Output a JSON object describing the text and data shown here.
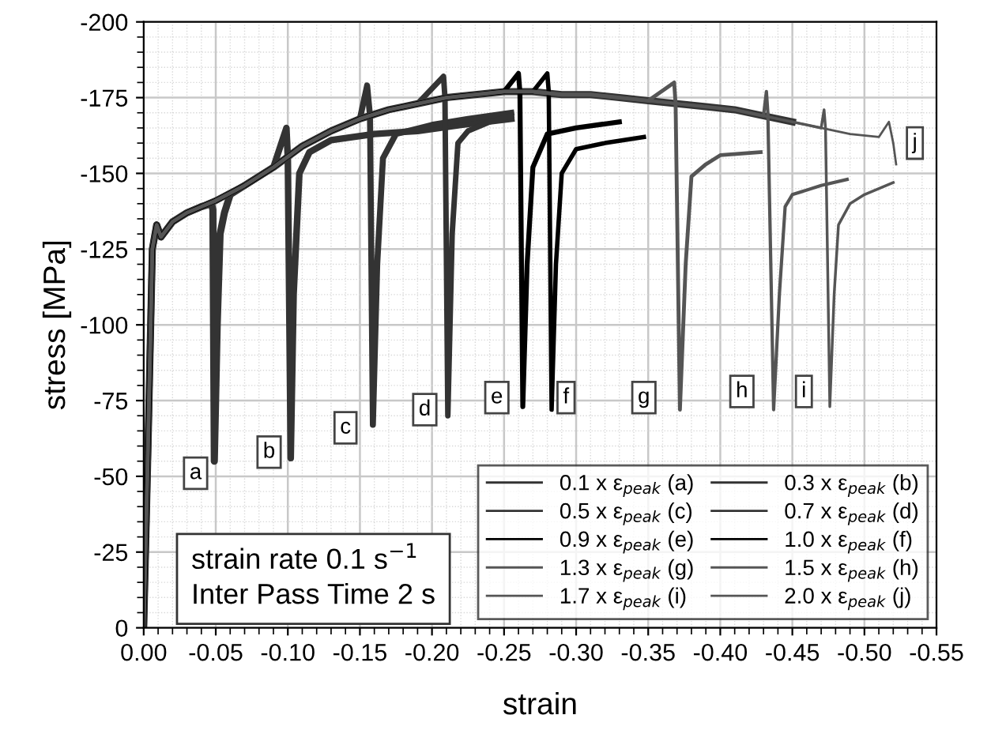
{
  "chart_data": {
    "type": "line",
    "xlabel": "strain",
    "ylabel": "stress [MPa]",
    "xlim": [
      0,
      -0.55
    ],
    "ylim": [
      0,
      -200
    ],
    "xticks": [
      {
        "value": 0,
        "label": "0.00"
      },
      {
        "value": -0.05,
        "label": "-0.05"
      },
      {
        "value": -0.1,
        "label": "-0.10"
      },
      {
        "value": -0.15,
        "label": "-0.15"
      },
      {
        "value": -0.2,
        "label": "-0.20"
      },
      {
        "value": -0.25,
        "label": "-0.25"
      },
      {
        "value": -0.3,
        "label": "-0.30"
      },
      {
        "value": -0.35,
        "label": "-0.35"
      },
      {
        "value": -0.4,
        "label": "-0.40"
      },
      {
        "value": -0.45,
        "label": "-0.45"
      },
      {
        "value": -0.5,
        "label": "-0.50"
      },
      {
        "value": -0.55,
        "label": "-0.55"
      }
    ],
    "yticks": [
      0,
      -25,
      -50,
      -75,
      -100,
      -125,
      -150,
      -175,
      -200
    ],
    "grid": true,
    "legend": "bottom right",
    "line_style": "solid",
    "marker": "none",
    "series": [
      {
        "name": "0.1 x ε$_{peak}$ (a)",
        "color": "#333333",
        "x": [
          0,
          -0.003,
          -0.006,
          -0.009,
          -0.012,
          -0.02,
          -0.03,
          -0.04,
          -0.047,
          -0.048,
          -0.049,
          -0.051,
          -0.053,
          -0.056,
          -0.06,
          -0.07,
          -0.09,
          -0.11,
          -0.13,
          -0.15,
          -0.17,
          -0.19,
          -0.21,
          -0.23,
          -0.25,
          -0.27,
          -0.29,
          -0.31,
          -0.33,
          -0.35,
          -0.37,
          -0.39,
          -0.41,
          -0.43,
          -0.45
        ],
        "values": [
          0,
          -60,
          -125,
          -133,
          -129,
          -134,
          -137,
          -139,
          -140,
          -138,
          -55,
          -100,
          -130,
          -137,
          -143,
          -146,
          -152,
          -159,
          -164,
          -168,
          -171,
          -173,
          -175,
          -176,
          -177,
          -177,
          -176,
          -176,
          -175,
          -174,
          -173,
          -172,
          -171,
          -169,
          -167
        ]
      },
      {
        "name": "0.3 x ε$_{peak}$ (b)",
        "color": "#333333",
        "x": [
          0,
          -0.003,
          -0.006,
          -0.009,
          -0.012,
          -0.02,
          -0.03,
          -0.04,
          -0.05,
          -0.07,
          -0.09,
          -0.099,
          -0.1,
          -0.102,
          -0.104,
          -0.108,
          -0.115,
          -0.13,
          -0.16,
          -0.19,
          -0.22,
          -0.255
        ],
        "values": [
          0,
          -60,
          -125,
          -133,
          -129,
          -134,
          -137,
          -139,
          -141,
          -146,
          -152,
          -165,
          -155,
          -56,
          -110,
          -150,
          -157,
          -161,
          -163,
          -164,
          -166,
          -168
        ]
      },
      {
        "name": "0.5 x ε$_{peak}$ (c)",
        "color": "#333333",
        "x": [
          0,
          -0.003,
          -0.006,
          -0.009,
          -0.012,
          -0.02,
          -0.03,
          -0.04,
          -0.05,
          -0.07,
          -0.09,
          -0.11,
          -0.13,
          -0.15,
          -0.155,
          -0.157,
          -0.159,
          -0.162,
          -0.166,
          -0.175,
          -0.2,
          -0.225,
          -0.255
        ],
        "values": [
          0,
          -60,
          -125,
          -133,
          -129,
          -134,
          -137,
          -139,
          -141,
          -146,
          -152,
          -159,
          -164,
          -168,
          -179,
          -169,
          -67,
          -120,
          -155,
          -163,
          -166,
          -168,
          -170
        ]
      },
      {
        "name": "0.7 x ε$_{peak}$ (d)",
        "color": "#333333",
        "x": [
          0,
          -0.003,
          -0.006,
          -0.009,
          -0.012,
          -0.02,
          -0.03,
          -0.04,
          -0.05,
          -0.07,
          -0.09,
          -0.11,
          -0.13,
          -0.15,
          -0.17,
          -0.19,
          -0.208,
          -0.209,
          -0.211,
          -0.214,
          -0.218,
          -0.225,
          -0.24,
          -0.255
        ],
        "values": [
          0,
          -60,
          -125,
          -133,
          -129,
          -134,
          -137,
          -139,
          -141,
          -146,
          -152,
          -159,
          -164,
          -168,
          -171,
          -173,
          -182,
          -175,
          -70,
          -130,
          -160,
          -164,
          -167,
          -169
        ]
      },
      {
        "name": "0.9 x ε$_{peak}$ (e)",
        "color": "#000000",
        "x": [
          0,
          -0.003,
          -0.006,
          -0.009,
          -0.012,
          -0.02,
          -0.03,
          -0.04,
          -0.05,
          -0.07,
          -0.09,
          -0.11,
          -0.13,
          -0.15,
          -0.17,
          -0.19,
          -0.21,
          -0.23,
          -0.25,
          -0.26,
          -0.261,
          -0.263,
          -0.266,
          -0.27,
          -0.28,
          -0.3,
          -0.33
        ],
        "values": [
          0,
          -60,
          -125,
          -133,
          -129,
          -134,
          -137,
          -139,
          -141,
          -146,
          -152,
          -159,
          -164,
          -168,
          -171,
          -173,
          -175,
          -176,
          -177,
          -183,
          -177,
          -73,
          -120,
          -152,
          -163,
          -165,
          -167
        ]
      },
      {
        "name": "1.0 x ε$_{peak}$ (f)",
        "color": "#000000",
        "x": [
          0,
          -0.003,
          -0.006,
          -0.009,
          -0.012,
          -0.02,
          -0.03,
          -0.04,
          -0.05,
          -0.07,
          -0.09,
          -0.11,
          -0.13,
          -0.15,
          -0.17,
          -0.19,
          -0.21,
          -0.23,
          -0.25,
          -0.27,
          -0.28,
          -0.281,
          -0.283,
          -0.286,
          -0.29,
          -0.3,
          -0.32,
          -0.347
        ],
        "values": [
          0,
          -60,
          -125,
          -133,
          -129,
          -134,
          -137,
          -139,
          -141,
          -146,
          -152,
          -159,
          -164,
          -168,
          -171,
          -173,
          -175,
          -176,
          -177,
          -177,
          -183,
          -177,
          -72,
          -120,
          -150,
          -158,
          -160,
          -162
        ]
      },
      {
        "name": "1.3 x ε$_{peak}$ (g)",
        "color": "#555555",
        "x": [
          0,
          -0.003,
          -0.006,
          -0.009,
          -0.012,
          -0.02,
          -0.03,
          -0.04,
          -0.05,
          -0.07,
          -0.09,
          -0.11,
          -0.13,
          -0.15,
          -0.17,
          -0.19,
          -0.21,
          -0.23,
          -0.25,
          -0.27,
          -0.29,
          -0.31,
          -0.33,
          -0.35,
          -0.368,
          -0.369,
          -0.372,
          -0.376,
          -0.38,
          -0.39,
          -0.4,
          -0.428
        ],
        "values": [
          0,
          -60,
          -125,
          -133,
          -129,
          -134,
          -137,
          -139,
          -141,
          -146,
          -152,
          -159,
          -164,
          -168,
          -171,
          -173,
          -175,
          -176,
          -177,
          -177,
          -176,
          -176,
          -175,
          -174,
          -180,
          -173,
          -72,
          -120,
          -149,
          -153,
          -156,
          -157
        ]
      },
      {
        "name": "1.5 x ε$_{peak}$ (h)",
        "color": "#555555",
        "x": [
          0,
          -0.003,
          -0.006,
          -0.009,
          -0.012,
          -0.02,
          -0.03,
          -0.04,
          -0.05,
          -0.07,
          -0.09,
          -0.11,
          -0.13,
          -0.15,
          -0.17,
          -0.19,
          -0.21,
          -0.23,
          -0.25,
          -0.27,
          -0.29,
          -0.31,
          -0.33,
          -0.35,
          -0.37,
          -0.39,
          -0.41,
          -0.43,
          -0.432,
          -0.433,
          -0.437,
          -0.441,
          -0.445,
          -0.45,
          -0.47,
          -0.488
        ],
        "values": [
          0,
          -60,
          -125,
          -133,
          -129,
          -134,
          -137,
          -139,
          -141,
          -146,
          -152,
          -159,
          -164,
          -168,
          -171,
          -173,
          -175,
          -176,
          -177,
          -177,
          -176,
          -176,
          -175,
          -174,
          -173,
          -172,
          -171,
          -169,
          -177,
          -170,
          -72,
          -110,
          -139,
          -143,
          -146,
          -148
        ]
      },
      {
        "name": "1.7 x ε$_{peak}$ (i)",
        "color": "#555555",
        "x": [
          0,
          -0.003,
          -0.006,
          -0.009,
          -0.012,
          -0.02,
          -0.03,
          -0.04,
          -0.05,
          -0.07,
          -0.09,
          -0.11,
          -0.13,
          -0.15,
          -0.17,
          -0.19,
          -0.21,
          -0.23,
          -0.25,
          -0.27,
          -0.29,
          -0.31,
          -0.33,
          -0.35,
          -0.37,
          -0.39,
          -0.41,
          -0.43,
          -0.45,
          -0.47,
          -0.472,
          -0.473,
          -0.476,
          -0.479,
          -0.482,
          -0.49,
          -0.5,
          -0.52
        ],
        "values": [
          0,
          -60,
          -125,
          -133,
          -129,
          -134,
          -137,
          -139,
          -141,
          -146,
          -152,
          -159,
          -164,
          -168,
          -171,
          -173,
          -175,
          -176,
          -177,
          -177,
          -176,
          -176,
          -175,
          -174,
          -173,
          -172,
          -171,
          -169,
          -167,
          -165,
          -171,
          -165,
          -73,
          -110,
          -133,
          -140,
          -143,
          -147
        ]
      },
      {
        "name": "2.0 x ε$_{peak}$ (j)",
        "color": "#555555",
        "x": [
          0,
          -0.003,
          -0.006,
          -0.009,
          -0.012,
          -0.02,
          -0.03,
          -0.04,
          -0.05,
          -0.07,
          -0.09,
          -0.11,
          -0.13,
          -0.15,
          -0.17,
          -0.19,
          -0.21,
          -0.23,
          -0.25,
          -0.27,
          -0.29,
          -0.31,
          -0.33,
          -0.35,
          -0.37,
          -0.39,
          -0.41,
          -0.43,
          -0.45,
          -0.47,
          -0.49,
          -0.51,
          -0.517,
          -0.52,
          -0.522
        ],
        "values": [
          0,
          -60,
          -125,
          -133,
          -129,
          -134,
          -137,
          -139,
          -141,
          -146,
          -152,
          -159,
          -164,
          -168,
          -171,
          -173,
          -175,
          -176,
          -177,
          -177,
          -176,
          -176,
          -175,
          -174,
          -173,
          -172,
          -171,
          -169,
          -167,
          -165,
          -163,
          -162,
          -167,
          -160,
          -153
        ]
      }
    ],
    "annotations": [
      {
        "text": "a",
        "x": -0.036,
        "y": -51
      },
      {
        "text": "b",
        "x": -0.087,
        "y": -58
      },
      {
        "text": "c",
        "x": -0.14,
        "y": -66
      },
      {
        "text": "d",
        "x": -0.195,
        "y": -72
      },
      {
        "text": "e",
        "x": -0.245,
        "y": -76
      },
      {
        "text": "f",
        "x": -0.293,
        "y": -76
      },
      {
        "text": "g",
        "x": -0.347,
        "y": -76
      },
      {
        "text": "h",
        "x": -0.415,
        "y": -78
      },
      {
        "text": "i",
        "x": -0.458,
        "y": -78
      },
      {
        "text": "j",
        "x": -0.535,
        "y": -160
      },
      "strain rate 0.1 s$^{−1}$\nInter Pass Time 2 s"
    ]
  }
}
